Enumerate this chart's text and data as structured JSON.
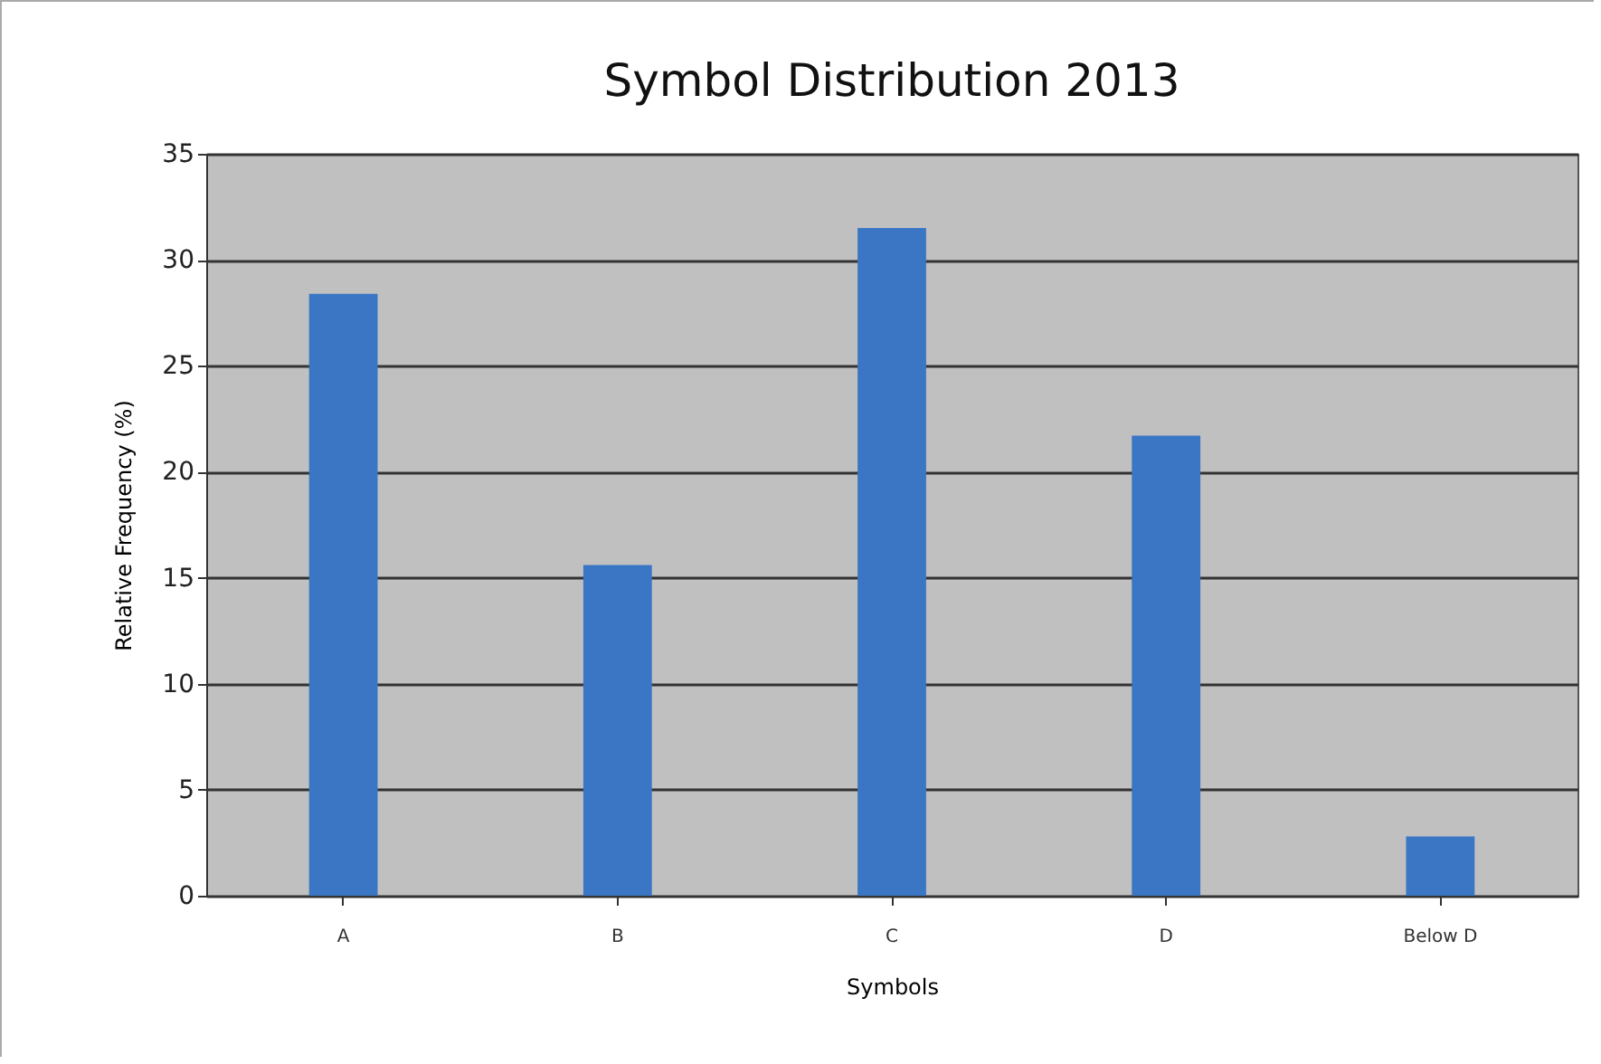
{
  "chart_data": {
    "type": "bar",
    "title": "Symbol Distribution 2013",
    "xlabel": "Symbols",
    "ylabel": "Relative Frequency (%)",
    "categories": [
      "A",
      "B",
      "C",
      "D",
      "Below D"
    ],
    "values": [
      28.4,
      15.6,
      31.5,
      21.7,
      2.8
    ],
    "color": "#3a76c4",
    "ylim": [
      0,
      35
    ],
    "yticks": [
      0,
      5,
      10,
      15,
      20,
      25,
      30,
      35
    ],
    "grid": "y"
  }
}
